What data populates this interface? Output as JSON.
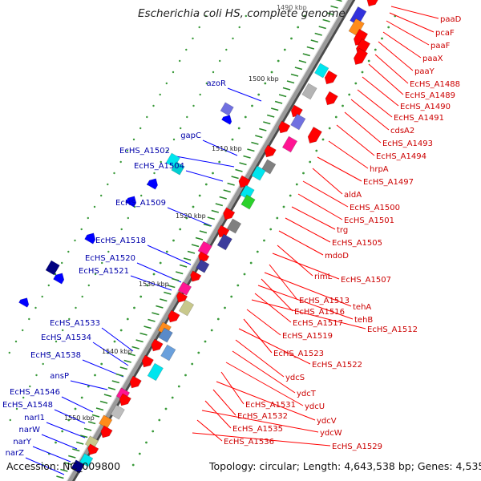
{
  "title": "Escherichia coli HS, complete genome",
  "accession": "Accession: NC_009800",
  "summary": "Topology: circular; Length: 4,643,538 bp; Genes: 4,535",
  "colors": {
    "right_label": "#cc0000",
    "left_label": "#0000aa",
    "backbone": "#8c8c8c",
    "tick": "#2a8a2a"
  },
  "ticks": [
    "1490 kbp",
    "1500 kbp",
    "1510 kbp",
    "1520 kbp",
    "1530 kbp",
    "1540 kbp",
    "1550 kbp"
  ],
  "right_genes": [
    "paaD",
    "pcaF",
    "paaF",
    "paaX",
    "paaY",
    "EcHS_A1488",
    "EcHS_A1489",
    "EcHS_A1490",
    "EcHS_A1491",
    "cdsA2",
    "EcHS_A1493",
    "EcHS_A1494",
    "hrpA",
    "EcHS_A1497",
    "aldA",
    "EcHS_A1500",
    "EcHS_A1501",
    "trg",
    "EcHS_A1505",
    "mdoD",
    "rimL",
    "EcHS_A1507",
    "EcHS_A1513",
    "tehA",
    "EcHS_A1516",
    "tehB",
    "EcHS_A1517",
    "EcHS_A1512",
    "EcHS_A1519",
    "EcHS_A1523",
    "EcHS_A1522",
    "ydcS",
    "ydcT",
    "ydcU",
    "EcHS_A1531",
    "ydcV",
    "EcHS_A1532",
    "EcHS_A1535",
    "ydcW",
    "EcHS_A1536",
    "EcHS_A1529"
  ],
  "left_genes": [
    "azoR",
    "gapC",
    "EcHS_A1502",
    "EcHS_A1504",
    "EcHS_A1509",
    "EcHS_A1518",
    "EcHS_A1520",
    "EcHS_A1521",
    "EcHS_A1533",
    "EcHS_A1534",
    "EcHS_A1538",
    "ansP",
    "EcHS_A1546",
    "EcHS_A1548",
    "narI1",
    "narW",
    "narY",
    "narZ"
  ]
}
